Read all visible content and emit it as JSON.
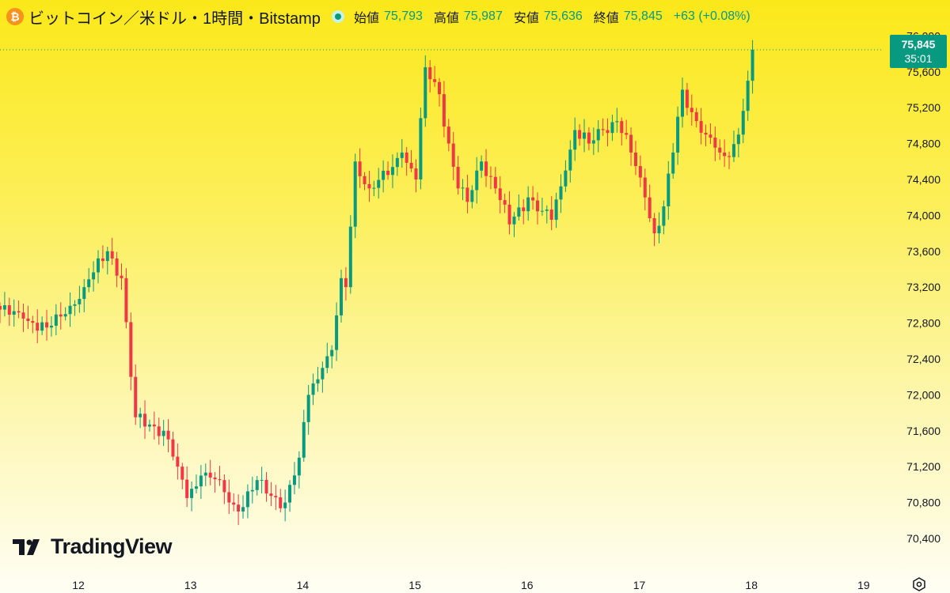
{
  "header": {
    "symbol_title": "ビットコイン／米ドル・1時間・Bitstamp",
    "btc_icon": "bitcoin-icon",
    "open_label": "始値",
    "open_value": "75,793",
    "high_label": "高値",
    "high_value": "75,987",
    "low_label": "安値",
    "low_value": "75,636",
    "close_label": "終値",
    "close_value": "75,845",
    "change": "+63 (+0.08%)"
  },
  "price_tag": {
    "price": "75,845",
    "countdown": "35:01"
  },
  "watermark": {
    "text": "TradingView",
    "icon": "tradingview-logo-icon"
  },
  "colors": {
    "up": "#089981",
    "down": "#f23645",
    "text": "#131722",
    "tag_bg": "#089981"
  },
  "chart_data": {
    "type": "candlestick",
    "timeframe": "1h",
    "exchange": "Bitstamp",
    "ylim": [
      70250,
      76100
    ],
    "y_ticks": [
      70400,
      70800,
      71200,
      71600,
      72000,
      72400,
      72800,
      73200,
      73600,
      74000,
      74400,
      74800,
      75200,
      75600,
      76000
    ],
    "x_ticks": [
      {
        "label": "12",
        "t": 12
      },
      {
        "label": "13",
        "t": 13
      },
      {
        "label": "14",
        "t": 14
      },
      {
        "label": "15",
        "t": 15
      },
      {
        "label": "16",
        "t": 16
      },
      {
        "label": "17",
        "t": 17
      },
      {
        "label": "18",
        "t": 18
      },
      {
        "label": "19",
        "t": 19
      }
    ],
    "last_price": 75845,
    "anchors": [
      {
        "i": 0,
        "p": 72950
      },
      {
        "i": 5,
        "p": 72850
      },
      {
        "i": 10,
        "p": 72750
      },
      {
        "i": 14,
        "p": 72900
      },
      {
        "i": 18,
        "p": 73200
      },
      {
        "i": 23,
        "p": 73600
      },
      {
        "i": 26,
        "p": 73300
      },
      {
        "i": 28,
        "p": 72200
      },
      {
        "i": 29,
        "p": 71750
      },
      {
        "i": 35,
        "p": 71600
      },
      {
        "i": 38,
        "p": 71200
      },
      {
        "i": 40,
        "p": 70850
      },
      {
        "i": 43,
        "p": 71100
      },
      {
        "i": 47,
        "p": 71050
      },
      {
        "i": 49,
        "p": 70800
      },
      {
        "i": 51,
        "p": 70700
      },
      {
        "i": 55,
        "p": 71050
      },
      {
        "i": 57,
        "p": 70900
      },
      {
        "i": 61,
        "p": 70800
      },
      {
        "i": 64,
        "p": 71300
      },
      {
        "i": 66,
        "p": 72000
      },
      {
        "i": 69,
        "p": 72300
      },
      {
        "i": 71,
        "p": 72500
      },
      {
        "i": 73,
        "p": 73300
      },
      {
        "i": 74,
        "p": 73200
      },
      {
        "i": 76,
        "p": 74600
      },
      {
        "i": 79,
        "p": 74300
      },
      {
        "i": 83,
        "p": 74450
      },
      {
        "i": 86,
        "p": 74700
      },
      {
        "i": 89,
        "p": 74400
      },
      {
        "i": 91,
        "p": 75650
      },
      {
        "i": 94,
        "p": 75350
      },
      {
        "i": 96,
        "p": 74800
      },
      {
        "i": 98,
        "p": 74300
      },
      {
        "i": 100,
        "p": 74150
      },
      {
        "i": 103,
        "p": 74600
      },
      {
        "i": 106,
        "p": 74300
      },
      {
        "i": 109,
        "p": 73900
      },
      {
        "i": 113,
        "p": 74200
      },
      {
        "i": 116,
        "p": 74050
      },
      {
        "i": 118,
        "p": 73950
      },
      {
        "i": 121,
        "p": 74500
      },
      {
        "i": 123,
        "p": 74950
      },
      {
        "i": 126,
        "p": 74800
      },
      {
        "i": 129,
        "p": 74950
      },
      {
        "i": 132,
        "p": 75050
      },
      {
        "i": 135,
        "p": 74700
      },
      {
        "i": 138,
        "p": 74200
      },
      {
        "i": 140,
        "p": 73800
      },
      {
        "i": 142,
        "p": 74100
      },
      {
        "i": 144,
        "p": 74700
      },
      {
        "i": 146,
        "p": 75400
      },
      {
        "i": 148,
        "p": 75150
      },
      {
        "i": 151,
        "p": 74900
      },
      {
        "i": 154,
        "p": 74700
      },
      {
        "i": 156,
        "p": 74650
      },
      {
        "i": 158,
        "p": 74900
      },
      {
        "i": 160,
        "p": 75500
      },
      {
        "i": 161,
        "p": 75845
      }
    ]
  }
}
